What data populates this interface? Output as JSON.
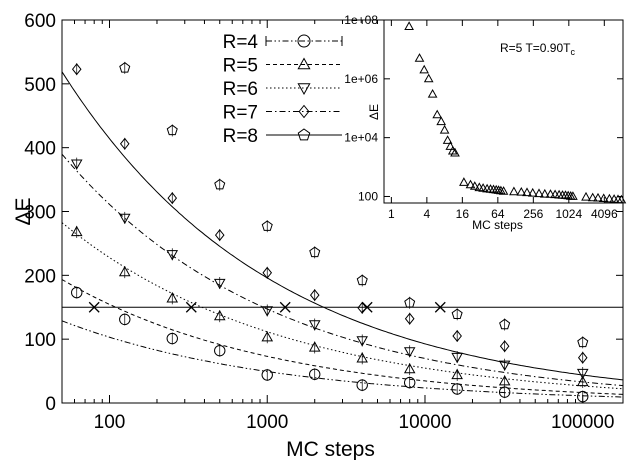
{
  "chart_data": [
    {
      "type": "scatter",
      "xlabel": "MC steps",
      "ylabel": "ΔE",
      "x_scale": "log",
      "xlim": [
        50,
        180000
      ],
      "ylim": [
        0,
        600
      ],
      "x_ticks": [
        100,
        1000,
        10000,
        100000
      ],
      "x_tick_labels": [
        "100",
        "1000",
        "10000",
        "100000"
      ],
      "y_ticks": [
        0,
        100,
        200,
        300,
        400,
        500,
        600
      ],
      "y_tick_labels": [
        "0",
        "100",
        "200",
        "300",
        "400",
        "500",
        "600"
      ],
      "grid": false,
      "legend_position": "top-center",
      "threshold_line": {
        "y": 150
      },
      "crossing_marker_x": [
        80,
        330,
        1300,
        4300,
        12500
      ],
      "series": [
        {
          "name": "R=4",
          "marker": "circle",
          "line": "dash-dot-dot",
          "x": [
            62,
            125,
            250,
            500,
            1000,
            2000,
            4000,
            8000,
            16000,
            32000,
            100000
          ],
          "y": [
            173,
            131,
            101,
            82,
            44,
            45,
            28,
            32,
            22,
            17,
            10
          ],
          "fit": {
            "a": 450,
            "b": 0.32
          }
        },
        {
          "name": "R=5",
          "marker": "triangle-up",
          "line": "dashed",
          "x": [
            62,
            125,
            250,
            500,
            1000,
            2000,
            4000,
            8000,
            16000,
            32000,
            100000
          ],
          "y": [
            268,
            205,
            164,
            136,
            103,
            87,
            70,
            53,
            44,
            34,
            33
          ],
          "fit": {
            "a": 690,
            "b": 0.325
          }
        },
        {
          "name": "R=6",
          "marker": "triangle-down",
          "line": "dotted",
          "x": [
            62,
            125,
            250,
            500,
            1000,
            2000,
            4000,
            8000,
            16000,
            32000,
            100000
          ],
          "y": [
            375,
            290,
            233,
            188,
            145,
            123,
            98,
            81,
            72,
            60,
            47
          ],
          "fit": {
            "a": 950,
            "b": 0.31
          }
        },
        {
          "name": "R=7",
          "marker": "diamond",
          "line": "dash-dot",
          "x": [
            62,
            125,
            250,
            500,
            1000,
            2000,
            4000,
            8000,
            16000,
            32000,
            100000
          ],
          "y": [
            523,
            406,
            321,
            263,
            204,
            169,
            149,
            132,
            105,
            89,
            71
          ],
          "fit": {
            "a": 1390,
            "b": 0.325
          }
        },
        {
          "name": "R=8",
          "marker": "pentagon",
          "line": "solid",
          "x": [
            125,
            250,
            500,
            1000,
            2000,
            4000,
            8000,
            16000,
            32000,
            100000
          ],
          "y": [
            525,
            427,
            342,
            277,
            236,
            192,
            157,
            139,
            123,
            95
          ],
          "fit": {
            "a": 1850,
            "b": 0.325
          }
        }
      ]
    },
    {
      "type": "scatter",
      "annotation": "R=5 T=0.90T",
      "annotation_sub": "c",
      "xlabel": "MC steps",
      "ylabel": "ΔE",
      "x_scale": "log",
      "y_scale": "log",
      "xlim": [
        0.75,
        8500
      ],
      "ylim": [
        60,
        100000000
      ],
      "x_ticks": [
        1,
        4,
        16,
        64,
        256,
        1024,
        4096
      ],
      "x_tick_labels": [
        "1",
        "4",
        "16",
        "64",
        "256",
        "1024",
        "4096"
      ],
      "y_ticks": [
        100,
        10000,
        1000000,
        100000000
      ],
      "y_tick_labels": [
        "100",
        "1e+04",
        "1e+06",
        "1e+08"
      ],
      "series": [
        {
          "name": "R=5",
          "marker": "triangle-up",
          "x": [
            2,
            3,
            3.6,
            4.3,
            5,
            6,
            7,
            8,
            9,
            10,
            11,
            12,
            17,
            22,
            26,
            31,
            36,
            42,
            48,
            54,
            60,
            66,
            72,
            80,
            120,
            160,
            200,
            250,
            320,
            400,
            500,
            600,
            700,
            800,
            900,
            1000,
            1100,
            1200,
            2000,
            2600,
            3200,
            4000,
            5000,
            6000,
            7000,
            8000
          ],
          "y": [
            60000000,
            5000000,
            2000000,
            1000000,
            300000,
            60000,
            35000,
            18000,
            8000,
            5000,
            3500,
            3000,
            300,
            250,
            220,
            200,
            190,
            180,
            175,
            170,
            165,
            160,
            155,
            150,
            145,
            140,
            135,
            130,
            125,
            120,
            118,
            115,
            112,
            110,
            108,
            105,
            102,
            100,
            95,
            90,
            88,
            85,
            82,
            80,
            78,
            76
          ]
        }
      ]
    }
  ]
}
